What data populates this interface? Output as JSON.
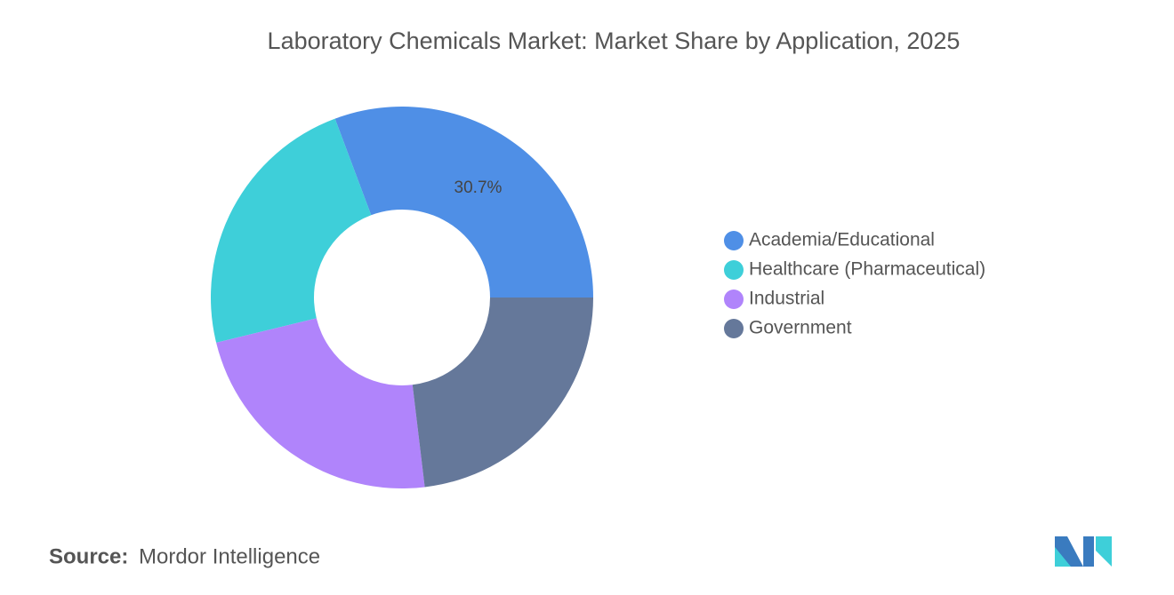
{
  "chart_data": {
    "type": "donut",
    "title": "Laboratory Chemicals Market: Market Share by Application, 2025",
    "categories": [
      "Academia/Educational",
      "Healthcare (Pharmaceutical)",
      "Industrial",
      "Government"
    ],
    "values": [
      30.7,
      23.1,
      23.1,
      23.1
    ],
    "value_labels": [
      "30.7%",
      null,
      null,
      null
    ],
    "colors": [
      "#4f8fe6",
      "#3ecfd9",
      "#b084fb",
      "#65789a"
    ],
    "legend": "right"
  },
  "source_label": "Source:",
  "source": "Mordor Intelligence"
}
